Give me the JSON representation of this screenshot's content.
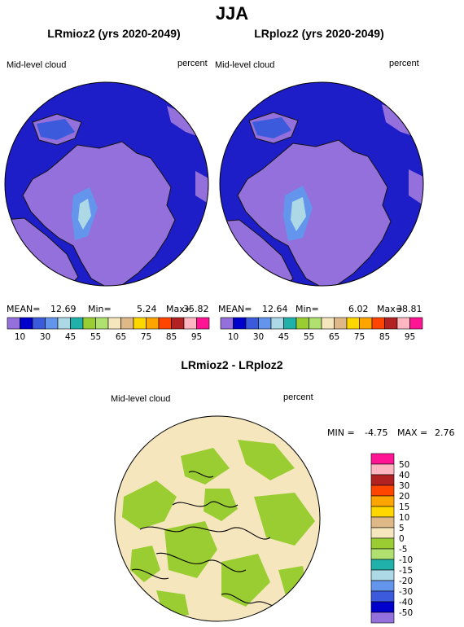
{
  "page": {
    "season": "JJA"
  },
  "panels": [
    {
      "title": "LRmioz2 (yrs 2020-2049)",
      "variable": "Mid-level cloud",
      "units": "percent",
      "stats": {
        "mean_label": "MEAN=",
        "mean": "12.69",
        "min_label": "Min=",
        "min": "5.24",
        "max_label": "Max=",
        "max": "35.82"
      }
    },
    {
      "title": "LRploz2 (yrs 2020-2049)",
      "variable": "Mid-level cloud",
      "units": "percent",
      "stats": {
        "mean_label": "MEAN=",
        "mean": "12.64",
        "min_label": "Min=",
        "min": "6.02",
        "max_label": "Max=",
        "max": "38.81"
      }
    }
  ],
  "diff_panel": {
    "title": "LRmioz2 - LRploz2",
    "variable": "Mid-level cloud",
    "units": "percent",
    "stats": {
      "min_label": "MIN =",
      "min": "-4.75",
      "max_label": "MAX =",
      "max": "2.76"
    }
  },
  "chart_data": [
    {
      "type": "heatmap",
      "projection": "polar-stereographic-north",
      "title": "LRmioz2 (yrs 2020-2049)",
      "stats": {
        "mean": 12.69,
        "min": 5.24,
        "max": 35.82
      },
      "colorbar": {
        "orientation": "horizontal",
        "levels": [
          10,
          15,
          20,
          25,
          30,
          35,
          40,
          45,
          50,
          55,
          60,
          65,
          70,
          75,
          80,
          85,
          90,
          95
        ],
        "tick_labels": [
          "10",
          "30",
          "45",
          "55",
          "65",
          "75",
          "85",
          "95"
        ],
        "colors": [
          "#9370db",
          "#0000cd",
          "#3c5adc",
          "#6495ed",
          "#add8e6",
          "#20b2aa",
          "#9acd32",
          "#b0e070",
          "#f5e6be",
          "#deb887",
          "#ffd700",
          "#ffa500",
          "#ff4500",
          "#b22222",
          "#ffb6c1",
          "#ff1493"
        ]
      }
    },
    {
      "type": "heatmap",
      "projection": "polar-stereographic-north",
      "title": "LRploz2 (yrs 2020-2049)",
      "stats": {
        "mean": 12.64,
        "min": 6.02,
        "max": 38.81
      },
      "colorbar": {
        "orientation": "horizontal",
        "tick_labels": [
          "10",
          "30",
          "45",
          "55",
          "65",
          "75",
          "85",
          "95"
        ]
      }
    },
    {
      "type": "heatmap",
      "projection": "polar-stereographic-north",
      "title": "LRmioz2 - LRploz2",
      "stats": {
        "min": -4.75,
        "max": 2.76
      },
      "colorbar": {
        "orientation": "vertical",
        "tick_labels": [
          "50",
          "40",
          "30",
          "20",
          "15",
          "10",
          "5",
          "0",
          "-5",
          "-10",
          "-15",
          "-20",
          "-30",
          "-40",
          "-50"
        ],
        "colors_top_to_bottom": [
          "#ff1493",
          "#ffb6c1",
          "#b22222",
          "#ff4500",
          "#ffa500",
          "#ffd700",
          "#deb887",
          "#f5e6be",
          "#9acd32",
          "#b0e070",
          "#20b2aa",
          "#add8e6",
          "#6495ed",
          "#3c5adc",
          "#0000cd",
          "#9370db"
        ]
      }
    }
  ]
}
